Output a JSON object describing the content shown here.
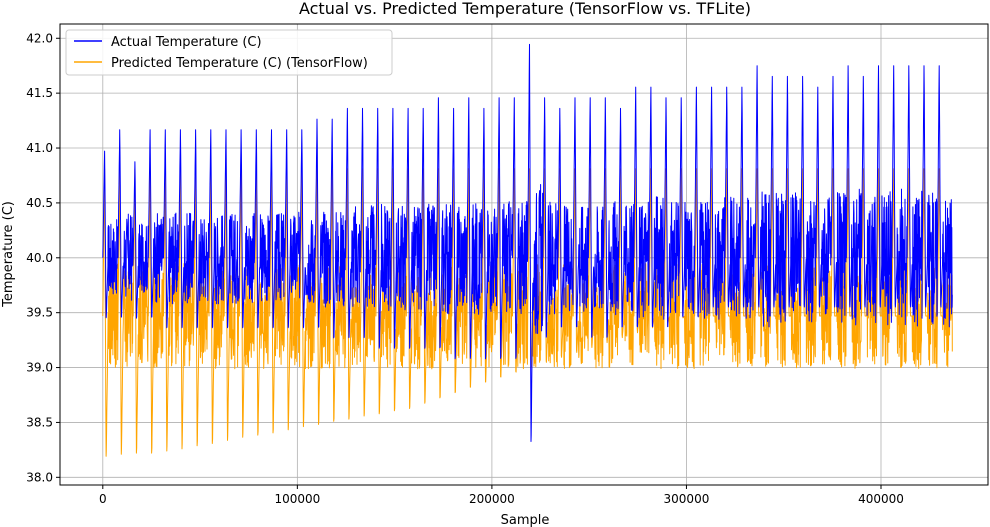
{
  "chart_data": {
    "type": "line",
    "title": "Actual vs. Predicted Temperature (TensorFlow vs. TFLite)",
    "xlabel": "Sample",
    "ylabel": "Temperature (C)",
    "xlim": [
      -22000,
      455000
    ],
    "ylim": [
      37.93,
      42.13
    ],
    "grid": true,
    "legend_position": "top-left",
    "x_ticks": [
      {
        "value": 0,
        "label": "0"
      },
      {
        "value": 100000,
        "label": "100000"
      },
      {
        "value": 200000,
        "label": "200000"
      },
      {
        "value": 300000,
        "label": "300000"
      },
      {
        "value": 400000,
        "label": "400000"
      }
    ],
    "y_ticks": [
      {
        "value": 38.0,
        "label": "38.0"
      },
      {
        "value": 38.5,
        "label": "38.5"
      },
      {
        "value": 39.0,
        "label": "39.0"
      },
      {
        "value": 39.5,
        "label": "39.5"
      },
      {
        "value": 40.0,
        "label": "40.0"
      },
      {
        "value": 40.5,
        "label": "40.5"
      },
      {
        "value": 41.0,
        "label": "41.0"
      },
      {
        "value": 41.5,
        "label": "41.5"
      },
      {
        "value": 42.0,
        "label": "42.0"
      }
    ],
    "cycle_length": 7800,
    "series": [
      {
        "name": "Actual Temperature (C)",
        "color": "#0000ff",
        "baseline": 40.0,
        "peaks": [
          41.0,
          41.2,
          40.9,
          41.2,
          41.2,
          41.2,
          41.2,
          41.2,
          41.2,
          41.2,
          41.2,
          41.2,
          41.2,
          41.2,
          41.3,
          41.3,
          41.4,
          41.4,
          41.4,
          41.4,
          41.4,
          41.4,
          41.5,
          41.4,
          41.5,
          41.4,
          41.5,
          41.5,
          42.0,
          41.5,
          41.4,
          41.5,
          41.5,
          41.5,
          41.4,
          41.6,
          41.6,
          41.5,
          41.5,
          41.6,
          41.6,
          41.6,
          41.6,
          41.8,
          41.7,
          41.7,
          41.7,
          41.6,
          41.7,
          41.8,
          41.7,
          41.8,
          41.8,
          41.8,
          41.8,
          41.8
        ],
        "troughs": [
          39.4,
          39.4,
          39.4,
          39.4,
          39.3,
          39.3,
          39.3,
          39.3,
          39.3,
          39.3,
          39.3,
          39.3,
          39.3,
          39.3,
          39.3,
          39.2,
          39.2,
          39.2,
          39.1,
          39.1,
          39.1,
          39.1,
          39.1,
          39.0,
          39.0,
          39.0,
          39.0,
          39.0,
          38.2,
          39.2,
          39.3,
          39.3,
          39.2,
          39.2,
          39.3,
          39.3,
          39.3,
          39.3,
          39.4,
          39.4,
          39.5,
          39.5,
          39.5,
          39.5,
          39.5,
          39.5,
          39.5,
          39.5,
          39.5,
          39.5,
          39.5,
          39.5,
          39.5,
          39.5,
          39.5,
          39.5
        ]
      },
      {
        "name": "Predicted Temperature (C) (TensorFlow)",
        "color": "#ffa500",
        "baseline": 39.47,
        "peaks": [
          40.85,
          40.85,
          40.85,
          40.85,
          40.85,
          40.85,
          40.85,
          40.85,
          40.85,
          40.85,
          40.85,
          40.85,
          40.85,
          40.85,
          40.85,
          40.85,
          40.85,
          40.85,
          40.85,
          40.85,
          40.85,
          40.85,
          40.85,
          40.85,
          40.85,
          40.85,
          40.85,
          40.85,
          40.85,
          40.85,
          40.85,
          40.85,
          40.85,
          40.85,
          40.85,
          40.85,
          40.85,
          40.85,
          40.85,
          40.85,
          40.85,
          40.85,
          40.85,
          40.85,
          40.85,
          40.85,
          40.85,
          40.85,
          40.85,
          40.85,
          40.85,
          40.85,
          40.85,
          40.85,
          40.85,
          40.85
        ],
        "troughs": [
          38.1,
          38.12,
          38.13,
          38.13,
          38.15,
          38.17,
          38.2,
          38.22,
          38.25,
          38.28,
          38.3,
          38.32,
          38.35,
          38.38,
          38.4,
          38.43,
          38.45,
          38.48,
          38.5,
          38.53,
          38.55,
          38.6,
          38.65,
          38.7,
          38.75,
          38.8,
          38.85,
          38.9,
          38.95,
          39.0,
          39.05,
          39.1,
          39.15,
          39.2,
          39.25,
          39.3,
          39.35,
          39.4,
          39.45,
          39.47,
          39.47,
          39.47,
          39.47,
          39.47,
          39.47,
          39.47,
          39.47,
          39.47,
          39.47,
          39.47,
          39.47,
          39.47,
          39.47,
          39.47,
          39.47,
          39.47
        ]
      }
    ]
  }
}
